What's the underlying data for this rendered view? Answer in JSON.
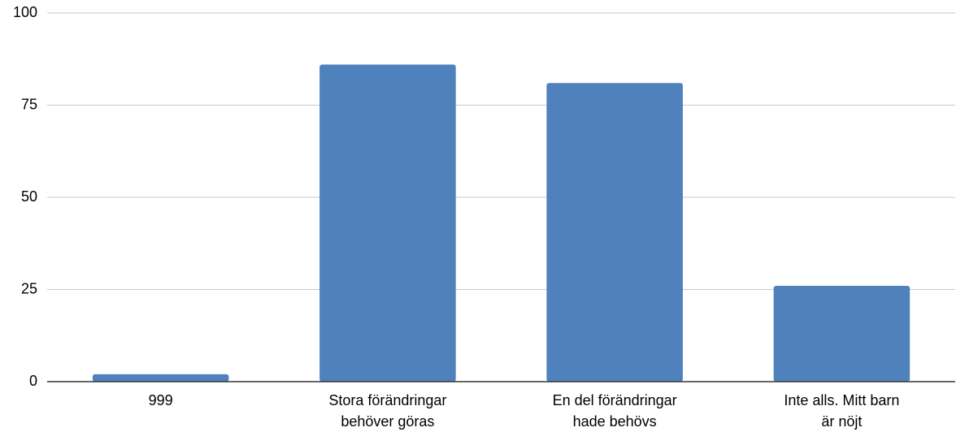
{
  "chart_data": {
    "type": "bar",
    "categories": [
      "999",
      "Stora förändringar behöver göras",
      "En del förändringar hade behövs",
      "Inte alls. Mitt barn är nöjt"
    ],
    "values": [
      2,
      86,
      81,
      26
    ],
    "color": "#4f81bd",
    "ylim": [
      0,
      100
    ],
    "yticks": [
      0,
      25,
      50,
      75,
      100
    ],
    "grid": true
  }
}
